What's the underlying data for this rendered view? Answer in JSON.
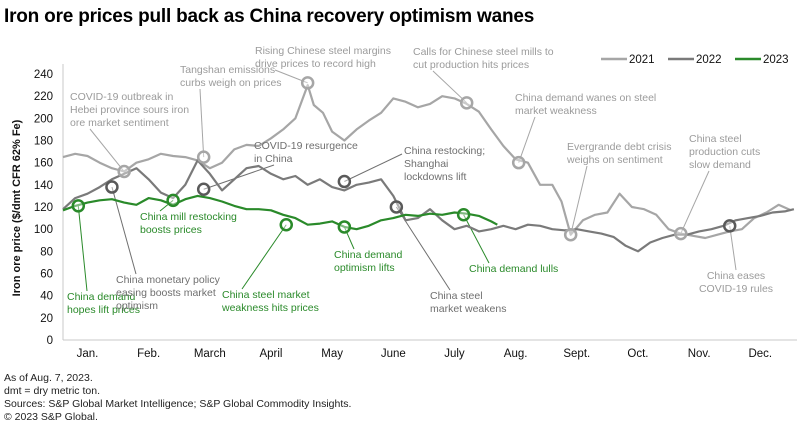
{
  "title": "Iron ore prices pull back as China recovery optimism wanes",
  "footnotes": [
    "As of Aug. 7, 2023.",
    "dmt = dry metric ton.",
    "Sources: S&P Global Market Intelligence; S&P Global Commodity Insights.",
    "© 2023 S&P Global."
  ],
  "chart_data": {
    "type": "line",
    "title": "Iron ore prices pull back as China recovery optimism wanes",
    "xlabel": "",
    "ylabel": "Iron ore price ($/dmt CFR 62% Fe)",
    "ylim": [
      0,
      240
    ],
    "yticks": [
      0,
      20,
      40,
      60,
      80,
      100,
      120,
      140,
      160,
      180,
      200,
      220,
      240
    ],
    "xlim": [
      0,
      12
    ],
    "categories": [
      "Jan.",
      "Feb.",
      "March",
      "April",
      "May",
      "June",
      "July",
      "Aug.",
      "Sept.",
      "Oct.",
      "Nov.",
      "Dec."
    ],
    "grid": false,
    "legend": {
      "position": "top-right",
      "entries": [
        "2021",
        "2022",
        "2023"
      ]
    },
    "colors": {
      "2021": "#a6a6a6",
      "2022": "#7a7a7a",
      "2023": "#2a8a2a"
    },
    "series": [
      {
        "name": "2021",
        "x": [
          0,
          0.2,
          0.4,
          0.6,
          0.8,
          1.0,
          1.2,
          1.4,
          1.6,
          1.8,
          2.0,
          2.2,
          2.4,
          2.6,
          2.8,
          3.0,
          3.2,
          3.4,
          3.6,
          3.8,
          4.0,
          4.1,
          4.25,
          4.4,
          4.6,
          4.8,
          5.0,
          5.2,
          5.4,
          5.6,
          5.8,
          6.0,
          6.2,
          6.4,
          6.6,
          6.8,
          7.0,
          7.2,
          7.4,
          7.6,
          7.8,
          8.0,
          8.15,
          8.3,
          8.5,
          8.7,
          8.9,
          9.1,
          9.3,
          9.5,
          9.7,
          9.9,
          10.1,
          10.3,
          10.5,
          10.7,
          10.9,
          11.1,
          11.3,
          11.5,
          11.7,
          11.9
        ],
        "values": [
          165,
          168,
          166,
          160,
          155,
          152,
          160,
          163,
          168,
          166,
          165,
          162,
          155,
          160,
          172,
          176,
          175,
          182,
          190,
          200,
          230,
          212,
          205,
          188,
          180,
          190,
          198,
          205,
          218,
          215,
          210,
          213,
          220,
          218,
          213,
          206,
          190,
          175,
          163,
          160,
          140,
          140,
          125,
          95,
          108,
          113,
          115,
          132,
          120,
          118,
          113,
          100,
          96,
          94,
          92,
          95,
          98,
          100,
          110,
          115,
          122,
          117
        ]
      },
      {
        "name": "2022",
        "x": [
          0,
          0.2,
          0.4,
          0.6,
          0.8,
          1.0,
          1.2,
          1.4,
          1.6,
          1.8,
          2.0,
          2.2,
          2.4,
          2.6,
          2.8,
          3.0,
          3.2,
          3.4,
          3.6,
          3.8,
          4.0,
          4.2,
          4.4,
          4.6,
          4.8,
          5.0,
          5.2,
          5.4,
          5.6,
          5.8,
          6.0,
          6.2,
          6.4,
          6.6,
          6.8,
          7.0,
          7.2,
          7.4,
          7.6,
          7.8,
          8.0,
          8.2,
          8.4,
          8.6,
          8.8,
          9.0,
          9.2,
          9.4,
          9.6,
          9.8,
          10.0,
          10.2,
          10.4,
          10.6,
          10.8,
          11.0,
          11.2,
          11.4,
          11.6,
          11.8,
          11.95
        ],
        "values": [
          118,
          128,
          132,
          138,
          145,
          150,
          155,
          145,
          133,
          128,
          140,
          162,
          150,
          135,
          145,
          155,
          157,
          150,
          145,
          148,
          140,
          145,
          138,
          135,
          140,
          142,
          145,
          130,
          108,
          110,
          118,
          108,
          100,
          103,
          98,
          100,
          103,
          100,
          104,
          103,
          100,
          99,
          100,
          98,
          96,
          93,
          85,
          80,
          88,
          92,
          95,
          95,
          98,
          100,
          103,
          108,
          110,
          112,
          115,
          116,
          118
        ]
      },
      {
        "name": "2023",
        "x": [
          0,
          0.2,
          0.4,
          0.6,
          0.8,
          1.0,
          1.2,
          1.4,
          1.6,
          1.8,
          2.0,
          2.2,
          2.4,
          2.6,
          2.8,
          3.0,
          3.2,
          3.4,
          3.6,
          3.8,
          4.0,
          4.2,
          4.4,
          4.6,
          4.8,
          5.0,
          5.2,
          5.4,
          5.6,
          5.8,
          6.0,
          6.2,
          6.4,
          6.6,
          6.8,
          7.0,
          7.1
        ],
        "values": [
          117,
          121,
          124,
          126,
          127,
          124,
          122,
          128,
          126,
          122,
          127,
          130,
          128,
          125,
          121,
          118,
          118,
          117,
          113,
          110,
          104,
          105,
          107,
          102,
          100,
          103,
          108,
          110,
          113,
          112,
          114,
          113,
          115,
          114,
          112,
          107,
          104
        ]
      }
    ],
    "annotations": [
      {
        "series": "2023",
        "x": 0.25,
        "y": 121,
        "label": "China demand hopes lift prices"
      },
      {
        "series": "2022",
        "x": 0.8,
        "y": 138,
        "label": "China monetary policy easing boosts market optimism"
      },
      {
        "series": "2021",
        "x": 1.0,
        "y": 152,
        "label": "COVID-19 outbreak in Hebei province sours iron ore market sentiment"
      },
      {
        "series": "2023",
        "x": 1.8,
        "y": 126,
        "label": "China mill restocking boosts prices"
      },
      {
        "series": "2021",
        "x": 2.3,
        "y": 165,
        "label": "Tangshan emissions curbs weigh on prices"
      },
      {
        "series": "2022",
        "x": 2.3,
        "y": 136,
        "label": "COVID-19 resurgence in China"
      },
      {
        "series": "2021",
        "x": 4.0,
        "y": 232,
        "label": "Rising Chinese steel margins drive prices to record high"
      },
      {
        "series": "2023",
        "x": 3.65,
        "y": 104,
        "label": "China steel market weakness hits prices"
      },
      {
        "series": "2023",
        "x": 4.6,
        "y": 102,
        "label": "China demand optimism lifts"
      },
      {
        "series": "2022",
        "x": 4.6,
        "y": 143,
        "label": "China restocking; Shanghai lockdowns lift"
      },
      {
        "series": "2022",
        "x": 5.45,
        "y": 120,
        "label": "China steel market weakens"
      },
      {
        "series": "2021",
        "x": 6.6,
        "y": 214,
        "label": "Calls for Chinese steel mills to cut production hits prices"
      },
      {
        "series": "2023",
        "x": 6.55,
        "y": 113,
        "label": "China demand lulls"
      },
      {
        "series": "2021",
        "x": 7.45,
        "y": 160,
        "label": "China demand wanes on steel market weakness"
      },
      {
        "series": "2021",
        "x": 8.3,
        "y": 95,
        "label": "Evergrande debt crisis weighs on sentiment"
      },
      {
        "series": "2021",
        "x": 10.1,
        "y": 96,
        "label": "China steel production cuts slow demand"
      },
      {
        "series": "2022",
        "x": 10.9,
        "y": 103,
        "label": "China eases COVID-19 rules"
      }
    ]
  }
}
